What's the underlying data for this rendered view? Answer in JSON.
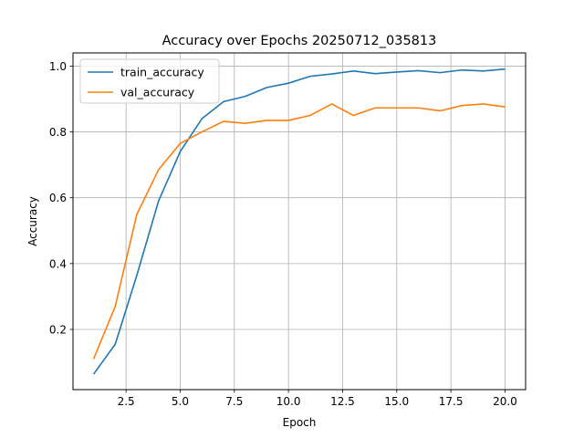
{
  "chart_data": {
    "type": "line",
    "title": "Accuracy over Epochs 20250712_035813",
    "xlabel": "Epoch",
    "ylabel": "Accuracy",
    "xlim": [
      0.05,
      20.95
    ],
    "ylim": [
      0.017,
      1.04
    ],
    "xticks": [
      2.5,
      5.0,
      7.5,
      10.0,
      12.5,
      15.0,
      17.5,
      20.0
    ],
    "xtick_labels": [
      "2.5",
      "5.0",
      "7.5",
      "10.0",
      "12.5",
      "15.0",
      "17.5",
      "20.0"
    ],
    "yticks": [
      0.2,
      0.4,
      0.6,
      0.8,
      1.0
    ],
    "ytick_labels": [
      "0.2",
      "0.4",
      "0.6",
      "0.8",
      "1.0"
    ],
    "grid": true,
    "legend_position": "top-left",
    "x": [
      1,
      2,
      3,
      4,
      5,
      6,
      7,
      8,
      9,
      10,
      11,
      12,
      13,
      14,
      15,
      16,
      17,
      18,
      19,
      20
    ],
    "series": [
      {
        "name": "train_accuracy",
        "color": "#1f77b4",
        "values": [
          0.064,
          0.155,
          0.365,
          0.59,
          0.74,
          0.84,
          0.892,
          0.908,
          0.935,
          0.948,
          0.969,
          0.976,
          0.985,
          0.977,
          0.982,
          0.986,
          0.98,
          0.988,
          0.985,
          0.991
        ]
      },
      {
        "name": "val_accuracy",
        "color": "#ff7f0e",
        "values": [
          0.11,
          0.27,
          0.55,
          0.685,
          0.765,
          0.8,
          0.832,
          0.826,
          0.835,
          0.835,
          0.85,
          0.885,
          0.85,
          0.873,
          0.873,
          0.873,
          0.864,
          0.88,
          0.885,
          0.876
        ]
      }
    ]
  }
}
